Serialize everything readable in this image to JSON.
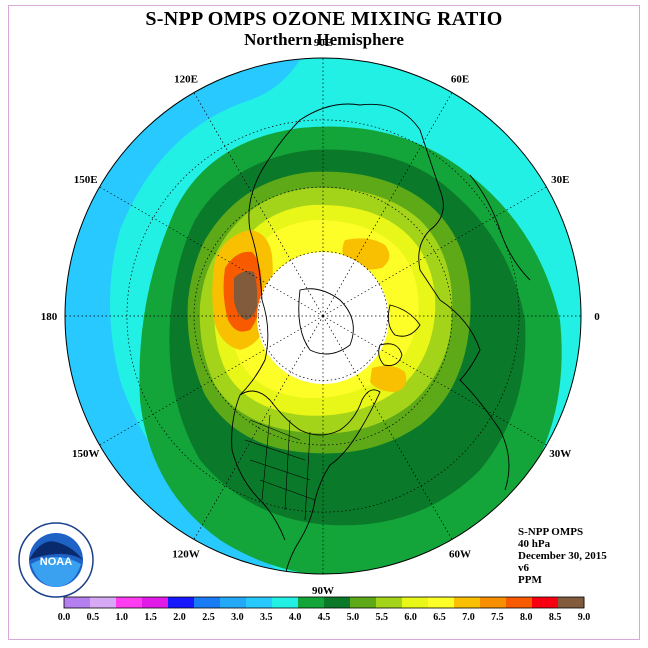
{
  "title": "S-NPP OMPS OZONE MIXING RATIO",
  "subtitle": "Northern Hemisphere",
  "longitude_labels": [
    {
      "text": "90E",
      "lon": 90
    },
    {
      "text": "60E",
      "lon": 60
    },
    {
      "text": "30E",
      "lon": 30
    },
    {
      "text": "0",
      "lon": 0
    },
    {
      "text": "30W",
      "lon": -30
    },
    {
      "text": "60W",
      "lon": -60
    },
    {
      "text": "90W",
      "lon": -90
    },
    {
      "text": "120W",
      "lon": -120
    },
    {
      "text": "150W",
      "lon": -150
    },
    {
      "text": "180",
      "lon": 180
    },
    {
      "text": "150E",
      "lon": 150
    },
    {
      "text": "120E",
      "lon": 120
    }
  ],
  "info": {
    "instrument": "S-NPP OMPS",
    "level": "40 hPa",
    "date": "December 30, 2015",
    "version": "v6",
    "units": "PPM"
  },
  "logo": {
    "text": "NOAA",
    "icon": "noaa-logo"
  },
  "colorbar": {
    "ticks": [
      "0.0",
      "0.5",
      "1.0",
      "1.5",
      "2.0",
      "2.5",
      "3.0",
      "3.5",
      "4.0",
      "4.5",
      "5.0",
      "5.5",
      "6.0",
      "6.5",
      "7.0",
      "7.5",
      "8.0",
      "8.5",
      "9.0"
    ],
    "colors": [
      "#b57fef",
      "#d7a9f5",
      "#ff3cf0",
      "#e21ae8",
      "#1818ff",
      "#1a7cf5",
      "#24a8f8",
      "#27c9ff",
      "#22f0e4",
      "#13a53a",
      "#0a7a2a",
      "#5ea918",
      "#a4d41a",
      "#e8f618",
      "#fdfd28",
      "#f8c000",
      "#f88f00",
      "#f85a00",
      "#f80010",
      "#825a3c"
    ]
  },
  "chart_data": {
    "type": "heatmap",
    "title": "S-NPP OMPS OZONE MIXING RATIO",
    "subtitle": "Northern Hemisphere",
    "units": "PPM",
    "pressure_level": "40 hPa",
    "date": "December 30, 2015",
    "projection": "north polar stereographic",
    "range": [
      0.0,
      9.0
    ],
    "no_data_region": "polar night near North Pole",
    "max_region": "Bering Sea / far eastern Siberia",
    "max_value_range": [
      8.5,
      9.0
    ]
  }
}
